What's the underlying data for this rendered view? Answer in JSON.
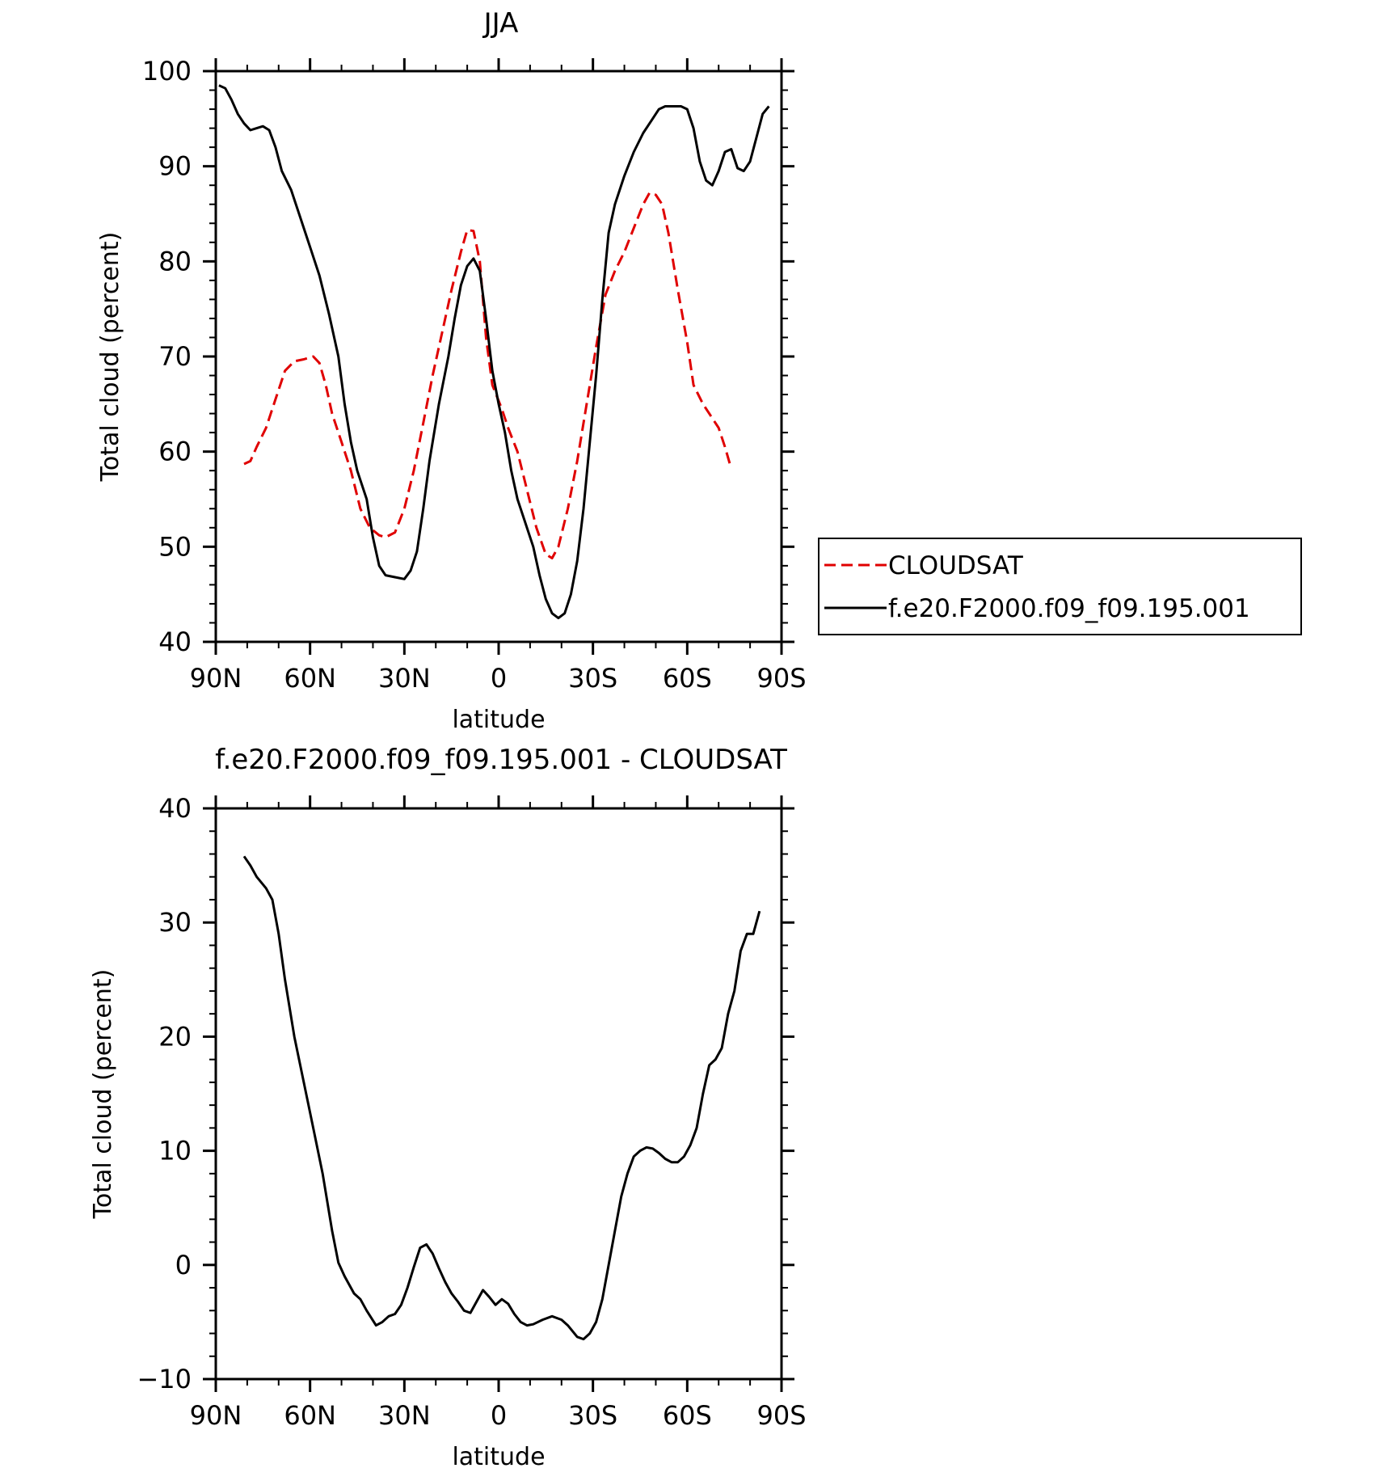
{
  "chart_data": [
    {
      "type": "line",
      "title": "JJA",
      "xlabel": "latitude",
      "ylabel": "Total cloud (percent)",
      "xlim": [
        90,
        -90
      ],
      "ylim": [
        40,
        100
      ],
      "x_ticks": [
        {
          "value": 90,
          "label": "90N"
        },
        {
          "value": 60,
          "label": "60N"
        },
        {
          "value": 30,
          "label": "30N"
        },
        {
          "value": 0,
          "label": "0"
        },
        {
          "value": -30,
          "label": "30S"
        },
        {
          "value": -60,
          "label": "60S"
        },
        {
          "value": -90,
          "label": "90S"
        }
      ],
      "y_ticks": [
        40,
        50,
        60,
        70,
        80,
        90,
        100
      ],
      "legend_position": "right",
      "series": [
        {
          "name": "CLOUDSAT",
          "color": "#e00000",
          "dash": "dashed",
          "points": [
            [
              81,
              58.7
            ],
            [
              79,
              59
            ],
            [
              77,
              60.5
            ],
            [
              74,
              62.5
            ],
            [
              71,
              65.5
            ],
            [
              68,
              68.5
            ],
            [
              65,
              69.5
            ],
            [
              62,
              69.7
            ],
            [
              59,
              70
            ],
            [
              57,
              69.3
            ],
            [
              55,
              67
            ],
            [
              53,
              64
            ],
            [
              50,
              61
            ],
            [
              47,
              58
            ],
            [
              44,
              54
            ],
            [
              41,
              52
            ],
            [
              38,
              51.2
            ],
            [
              36,
              51
            ],
            [
              33,
              51.5
            ],
            [
              30,
              54
            ],
            [
              27,
              58
            ],
            [
              24,
              63
            ],
            [
              21,
              68
            ],
            [
              18,
              72.5
            ],
            [
              15,
              77
            ],
            [
              12,
              81
            ],
            [
              10,
              83.3
            ],
            [
              8,
              83.2
            ],
            [
              6,
              80
            ],
            [
              4,
              72
            ],
            [
              2,
              67
            ],
            [
              -1,
              64.5
            ],
            [
              -3,
              62.5
            ],
            [
              -6,
              60
            ],
            [
              -9,
              56
            ],
            [
              -12,
              52
            ],
            [
              -15,
              49.2
            ],
            [
              -17,
              48.8
            ],
            [
              -19,
              50
            ],
            [
              -22,
              54
            ],
            [
              -25,
              59
            ],
            [
              -28,
              65
            ],
            [
              -31,
              71
            ],
            [
              -34,
              76.5
            ],
            [
              -37,
              79
            ],
            [
              -40,
              81
            ],
            [
              -43,
              83.5
            ],
            [
              -46,
              86
            ],
            [
              -48,
              87.2
            ],
            [
              -50,
              87
            ],
            [
              -52,
              86
            ],
            [
              -54,
              83
            ],
            [
              -57,
              77
            ],
            [
              -60,
              71.5
            ],
            [
              -62,
              67
            ],
            [
              -65,
              65
            ],
            [
              -67,
              64
            ],
            [
              -70,
              62.5
            ],
            [
              -72,
              60.5
            ],
            [
              -74,
              58.2
            ]
          ]
        },
        {
          "name": "f.e20.F2000.f09_f09.195.001",
          "color": "#000000",
          "dash": "solid",
          "points": [
            [
              89,
              98.5
            ],
            [
              87,
              98.2
            ],
            [
              85,
              97
            ],
            [
              83,
              95.5
            ],
            [
              81,
              94.5
            ],
            [
              79,
              93.8
            ],
            [
              77,
              94
            ],
            [
              75,
              94.2
            ],
            [
              73,
              93.8
            ],
            [
              71,
              92
            ],
            [
              69,
              89.5
            ],
            [
              66,
              87.5
            ],
            [
              63,
              84.5
            ],
            [
              60,
              81.5
            ],
            [
              57,
              78.5
            ],
            [
              54,
              74.5
            ],
            [
              51,
              70
            ],
            [
              49,
              65
            ],
            [
              47,
              61
            ],
            [
              45,
              58
            ],
            [
              42,
              55
            ],
            [
              40,
              51
            ],
            [
              38,
              48
            ],
            [
              36,
              47
            ],
            [
              33,
              46.8
            ],
            [
              30,
              46.6
            ],
            [
              28,
              47.5
            ],
            [
              26,
              49.5
            ],
            [
              24,
              54
            ],
            [
              22,
              59
            ],
            [
              19,
              65
            ],
            [
              16,
              70
            ],
            [
              14,
              74
            ],
            [
              12,
              77.5
            ],
            [
              10,
              79.5
            ],
            [
              8,
              80.3
            ],
            [
              6,
              79
            ],
            [
              4,
              74
            ],
            [
              2,
              68.5
            ],
            [
              0,
              65
            ],
            [
              -2,
              62
            ],
            [
              -4,
              58
            ],
            [
              -6,
              55
            ],
            [
              -8,
              53
            ],
            [
              -11,
              50
            ],
            [
              -13,
              47
            ],
            [
              -15,
              44.5
            ],
            [
              -17,
              43
            ],
            [
              -19,
              42.5
            ],
            [
              -21,
              43
            ],
            [
              -23,
              45
            ],
            [
              -25,
              48.5
            ],
            [
              -27,
              54
            ],
            [
              -29,
              61
            ],
            [
              -31,
              68
            ],
            [
              -33,
              76
            ],
            [
              -35,
              83
            ],
            [
              -37,
              86
            ],
            [
              -40,
              89
            ],
            [
              -43,
              91.5
            ],
            [
              -46,
              93.5
            ],
            [
              -49,
              95
            ],
            [
              -51,
              96
            ],
            [
              -53,
              96.3
            ],
            [
              -55,
              96.3
            ],
            [
              -58,
              96.3
            ],
            [
              -60,
              96
            ],
            [
              -62,
              94
            ],
            [
              -64,
              90.5
            ],
            [
              -66,
              88.5
            ],
            [
              -68,
              88
            ],
            [
              -70,
              89.5
            ],
            [
              -72,
              91.5
            ],
            [
              -74,
              91.8
            ],
            [
              -76,
              89.8
            ],
            [
              -78,
              89.5
            ],
            [
              -80,
              90.5
            ],
            [
              -82,
              93
            ],
            [
              -84,
              95.5
            ],
            [
              -86,
              96.3
            ]
          ]
        }
      ]
    },
    {
      "type": "line",
      "title": "f.e20.F2000.f09_f09.195.001 - CLOUDSAT",
      "xlabel": "latitude",
      "ylabel": "Total cloud (percent)",
      "xlim": [
        90,
        -90
      ],
      "ylim": [
        -10,
        40
      ],
      "x_ticks": [
        {
          "value": 90,
          "label": "90N"
        },
        {
          "value": 60,
          "label": "60N"
        },
        {
          "value": 30,
          "label": "30N"
        },
        {
          "value": 0,
          "label": "0"
        },
        {
          "value": -30,
          "label": "30S"
        },
        {
          "value": -60,
          "label": "60S"
        },
        {
          "value": -90,
          "label": "90S"
        }
      ],
      "y_ticks": [
        -10,
        0,
        10,
        20,
        30,
        40
      ],
      "series": [
        {
          "color": "#000000",
          "dash": "solid",
          "points": [
            [
              81,
              35.8
            ],
            [
              79,
              35
            ],
            [
              77,
              34
            ],
            [
              74,
              33
            ],
            [
              72,
              32
            ],
            [
              70,
              29
            ],
            [
              68,
              25
            ],
            [
              65,
              20
            ],
            [
              62,
              16
            ],
            [
              59,
              12
            ],
            [
              56,
              8
            ],
            [
              53,
              3
            ],
            [
              51,
              0.2
            ],
            [
              49,
              -1
            ],
            [
              46,
              -2.5
            ],
            [
              44,
              -3
            ],
            [
              42,
              -4
            ],
            [
              39,
              -5.3
            ],
            [
              37,
              -5
            ],
            [
              35,
              -4.5
            ],
            [
              33,
              -4.3
            ],
            [
              31,
              -3.5
            ],
            [
              29,
              -2
            ],
            [
              27,
              -0.2
            ],
            [
              25,
              1.5
            ],
            [
              23,
              1.8
            ],
            [
              21,
              1
            ],
            [
              19,
              -0.3
            ],
            [
              17,
              -1.5
            ],
            [
              15,
              -2.5
            ],
            [
              13,
              -3.2
            ],
            [
              11,
              -4
            ],
            [
              9,
              -4.2
            ],
            [
              7,
              -3.2
            ],
            [
              5,
              -2.2
            ],
            [
              3,
              -2.8
            ],
            [
              1,
              -3.5
            ],
            [
              -1,
              -3
            ],
            [
              -3,
              -3.4
            ],
            [
              -5,
              -4.3
            ],
            [
              -7,
              -5
            ],
            [
              -9,
              -5.3
            ],
            [
              -11,
              -5.2
            ],
            [
              -14,
              -4.8
            ],
            [
              -17,
              -4.5
            ],
            [
              -20,
              -4.8
            ],
            [
              -22,
              -5.3
            ],
            [
              -25,
              -6.3
            ],
            [
              -27,
              -6.5
            ],
            [
              -29,
              -6
            ],
            [
              -31,
              -5
            ],
            [
              -33,
              -3
            ],
            [
              -35,
              0
            ],
            [
              -37,
              3
            ],
            [
              -39,
              6
            ],
            [
              -41,
              8
            ],
            [
              -43,
              9.5
            ],
            [
              -45,
              10
            ],
            [
              -47,
              10.3
            ],
            [
              -49,
              10.2
            ],
            [
              -51,
              9.8
            ],
            [
              -53,
              9.3
            ],
            [
              -55,
              9
            ],
            [
              -57,
              9
            ],
            [
              -59,
              9.5
            ],
            [
              -61,
              10.5
            ],
            [
              -63,
              12
            ],
            [
              -65,
              15
            ],
            [
              -67,
              17.5
            ],
            [
              -69,
              18
            ],
            [
              -71,
              19
            ],
            [
              -73,
              22
            ],
            [
              -75,
              24
            ],
            [
              -77,
              27.5
            ],
            [
              -79,
              29
            ],
            [
              -81,
              29
            ],
            [
              -83,
              31
            ]
          ]
        }
      ]
    }
  ]
}
